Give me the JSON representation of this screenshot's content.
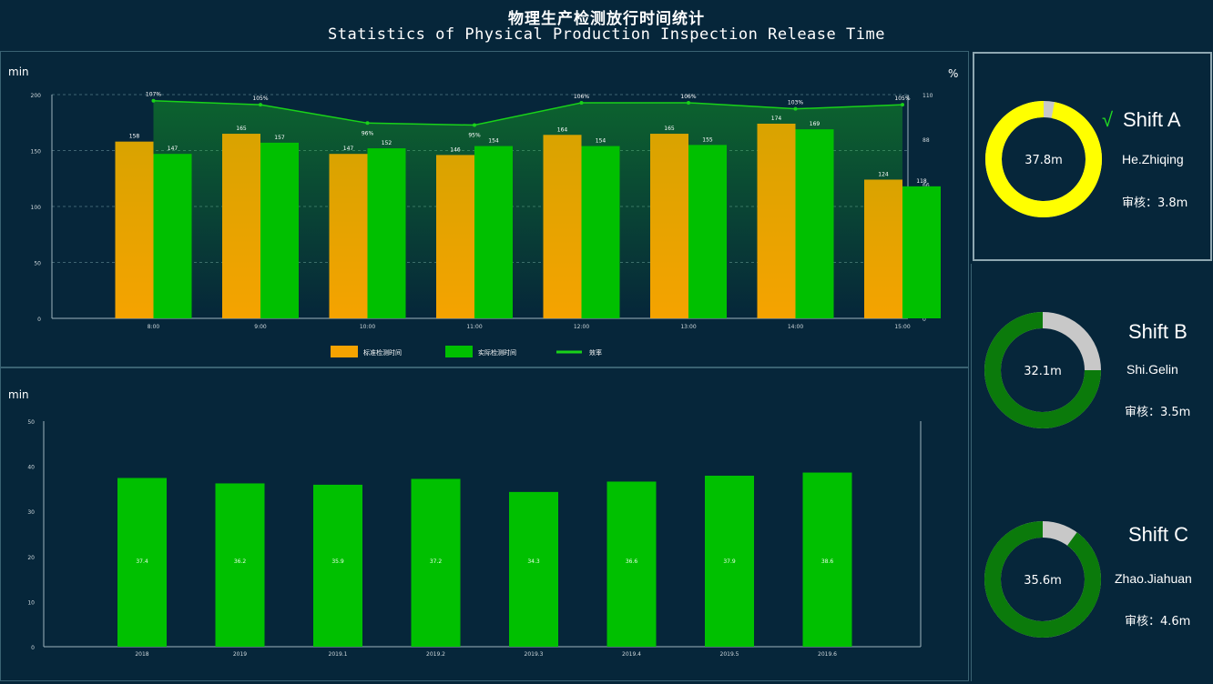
{
  "header": {
    "title_cn": "物理生产检测放行时间统计",
    "title_en": "Statistics of Physical Production Inspection Release Time"
  },
  "colors": {
    "background": "#06263a",
    "standard_bar": "#f5a300",
    "actual_bar": "#00c000",
    "rate_line": "#19d219",
    "ring_gray": "#c8c8c8",
    "shift_a_ring": "#ffff00",
    "shift_bc_ring": "#0b7a0b",
    "check_mark": "#22dd22"
  },
  "chart_data": [
    {
      "type": "bar",
      "ylabel": "min",
      "y2label": "%",
      "ylim": [
        0,
        200
      ],
      "y2lim": [
        0,
        110
      ],
      "yticks": [
        "0",
        "50",
        "100",
        "150",
        "200"
      ],
      "y2ticks": [
        "0",
        "22",
        "44",
        "66",
        "88",
        "110"
      ],
      "categories": [
        "8:00",
        "9:00",
        "10:00",
        "11:00",
        "12:00",
        "13:00",
        "14:00",
        "15:00"
      ],
      "series": [
        {
          "name": "标准检测时间",
          "kind": "bar",
          "axis": "left",
          "values": [
            158,
            165,
            147,
            146,
            164,
            165,
            174,
            124
          ],
          "labels": [
            "158",
            "165",
            "147",
            "146",
            "164",
            "165",
            "174",
            "124"
          ]
        },
        {
          "name": "实际检测时间",
          "kind": "bar",
          "axis": "left",
          "values": [
            147,
            157,
            152,
            154,
            154,
            155,
            169,
            118
          ],
          "labels": [
            "147",
            "157",
            "152",
            "154",
            "154",
            "155",
            "169",
            "118"
          ]
        },
        {
          "name": "效率",
          "kind": "line",
          "axis": "right",
          "values": [
            107,
            105,
            96,
            95,
            106,
            106,
            103,
            105
          ],
          "labels": [
            "107%",
            "105%",
            "96%",
            "95%",
            "106%",
            "106%",
            "103%",
            "105%"
          ]
        }
      ],
      "grid": true,
      "legend": "bottom"
    },
    {
      "type": "bar",
      "ylabel": "min",
      "ylim": [
        0,
        50
      ],
      "yticks": [
        "0",
        "10",
        "20",
        "30",
        "40",
        "50"
      ],
      "categories": [
        "2018",
        "2019",
        "2019.1",
        "2019.2",
        "2019.3",
        "2019.4",
        "2019.5",
        "2019.6"
      ],
      "series": [
        {
          "name": "",
          "values": [
            37.4,
            36.2,
            35.9,
            37.2,
            34.3,
            36.6,
            37.9,
            38.6
          ],
          "labels": [
            "37.4",
            "36.2",
            "35.9",
            "37.2",
            "34.3",
            "36.6",
            "37.9",
            "38.6"
          ]
        }
      ],
      "grid": false,
      "legend": "none"
    }
  ],
  "shifts": [
    {
      "title": "Shift A",
      "check": "√",
      "name": "He.Zhiqing",
      "center": "37.8m",
      "review": "审核：3.8m",
      "fraction": 0.97
    },
    {
      "title": "Shift B",
      "check": "",
      "name": "Shi.Gelin",
      "center": "32.1m",
      "review": "审核：3.5m",
      "fraction": 0.75
    },
    {
      "title": "Shift C",
      "check": "",
      "name": "Zhao.Jiahuan",
      "center": "35.6m",
      "review": "审核：4.6m",
      "fraction": 0.9
    }
  ]
}
